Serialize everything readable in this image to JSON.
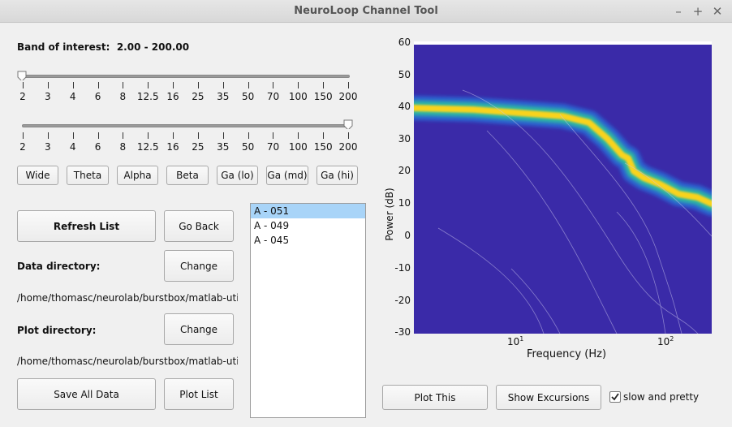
{
  "window": {
    "title": "NeuroLoop Channel Tool"
  },
  "band": {
    "label": "Band of interest:",
    "value": "2.00 - 200.00"
  },
  "sliders": {
    "ticks": [
      "2",
      "3",
      "4",
      "6",
      "8",
      "12.5",
      "16",
      "25",
      "35",
      "50",
      "70",
      "100",
      "150",
      "200"
    ],
    "low_value": "2",
    "high_value": "200"
  },
  "band_buttons": [
    "Wide",
    "Theta",
    "Alpha",
    "Beta",
    "Ga (lo)",
    "Ga (md)",
    "Ga (hi)"
  ],
  "buttons": {
    "refresh": "Refresh List",
    "go_back": "Go Back",
    "change_data": "Change",
    "change_plot": "Change",
    "save_all": "Save All Data",
    "plot_list": "Plot List",
    "plot_this": "Plot This",
    "show_excursions": "Show Excursions"
  },
  "data_dir": {
    "label": "Data directory:",
    "path": "/home/thomasc/neurolab/burstbox/matlab-util/ou…"
  },
  "plot_dir": {
    "label": "Plot directory:",
    "path": "/home/thomasc/neurolab/burstbox/matlab-util/pl…"
  },
  "channels": {
    "items": [
      "A - 051",
      "A - 049",
      "A - 045"
    ],
    "selected": 0
  },
  "checkbox": {
    "label": "slow and pretty",
    "checked": true
  },
  "chart_data": {
    "type": "heatmap",
    "title": "",
    "xlabel": "Frequency (Hz)",
    "ylabel": "Power (dB)",
    "x_scale": "log",
    "xlim": [
      2,
      200
    ],
    "ylim": [
      -30,
      60
    ],
    "x_ticks": [
      {
        "base": "10",
        "exp": "1",
        "value": 10
      },
      {
        "base": "10",
        "exp": "2",
        "value": 100
      }
    ],
    "y_ticks": [
      "60",
      "50",
      "40",
      "30",
      "20",
      "10",
      "0",
      "-10",
      "-20",
      "-30"
    ],
    "ridge": [
      [
        2,
        39.5
      ],
      [
        5,
        39
      ],
      [
        10,
        38
      ],
      [
        20,
        37
      ],
      [
        30,
        35
      ],
      [
        40,
        30
      ],
      [
        50,
        25
      ],
      [
        55,
        24
      ],
      [
        60,
        20
      ],
      [
        70,
        18
      ],
      [
        90,
        16
      ],
      [
        120,
        13
      ],
      [
        160,
        12
      ],
      [
        200,
        10
      ]
    ],
    "colors": {
      "background": "#3a2aa8",
      "peak": "#f9d31d",
      "mid": "#2fc0a0",
      "edge": "#1f8ef0"
    }
  }
}
